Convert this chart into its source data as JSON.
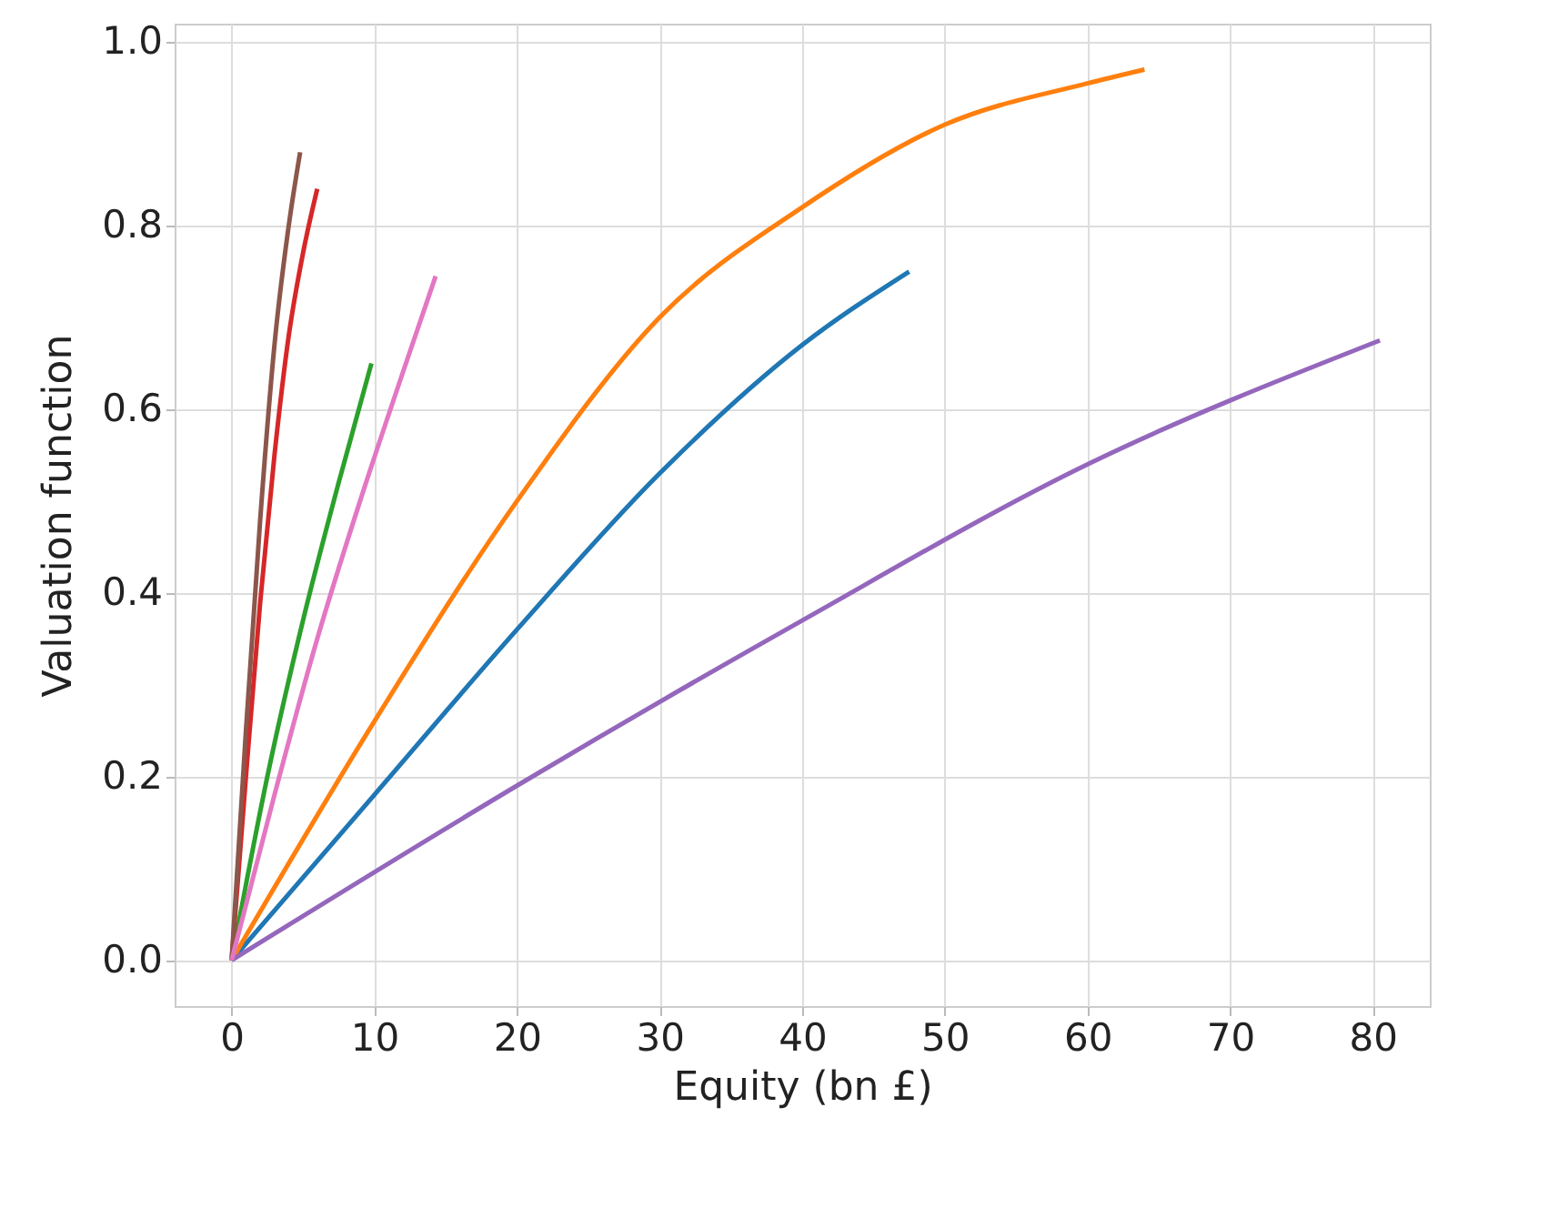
{
  "chart_data": {
    "type": "line",
    "xlabel": "Equity (bn £)",
    "ylabel": "Valuation function",
    "xlim": [
      -4,
      84
    ],
    "ylim": [
      -0.05,
      1.02
    ],
    "xticks": [
      0,
      10,
      20,
      30,
      40,
      50,
      60,
      70,
      80
    ],
    "yticks": [
      {
        "value": 0,
        "label": "0.0"
      },
      0.2,
      0.4,
      0.6,
      0.8,
      {
        "value": 1,
        "label": "1.0"
      }
    ],
    "grid": true,
    "legend": false,
    "series": [
      {
        "color": "#1f77b4",
        "x": [
          0,
          10,
          20,
          30,
          40,
          47.5
        ],
        "values": [
          0,
          0.18,
          0.36,
          0.53,
          0.67,
          0.75
        ]
      },
      {
        "color": "#ff7f0e",
        "x": [
          0,
          10,
          20,
          30,
          40,
          50,
          60,
          64
        ],
        "values": [
          0,
          0.26,
          0.5,
          0.7,
          0.82,
          0.91,
          0.955,
          0.97
        ]
      },
      {
        "color": "#2ca02c",
        "x": [
          0,
          2.5,
          5,
          7.5,
          9.8
        ],
        "values": [
          0,
          0.2,
          0.37,
          0.52,
          0.65
        ]
      },
      {
        "color": "#d62728",
        "x": [
          0,
          1,
          2,
          3,
          4,
          5,
          6
        ],
        "values": [
          0,
          0.2,
          0.39,
          0.55,
          0.68,
          0.77,
          0.84
        ]
      },
      {
        "color": "#9467bd",
        "x": [
          0,
          20,
          40,
          60,
          80.5
        ],
        "values": [
          0,
          0.19,
          0.37,
          0.54,
          0.675
        ]
      },
      {
        "color": "#8c564b",
        "x": [
          0,
          1,
          2,
          3,
          4,
          4.8
        ],
        "values": [
          0,
          0.25,
          0.48,
          0.67,
          0.8,
          0.88
        ]
      },
      {
        "color": "#e377c2",
        "x": [
          0,
          3,
          6,
          9,
          12,
          14.3
        ],
        "values": [
          0,
          0.18,
          0.35,
          0.5,
          0.64,
          0.745
        ]
      }
    ]
  }
}
